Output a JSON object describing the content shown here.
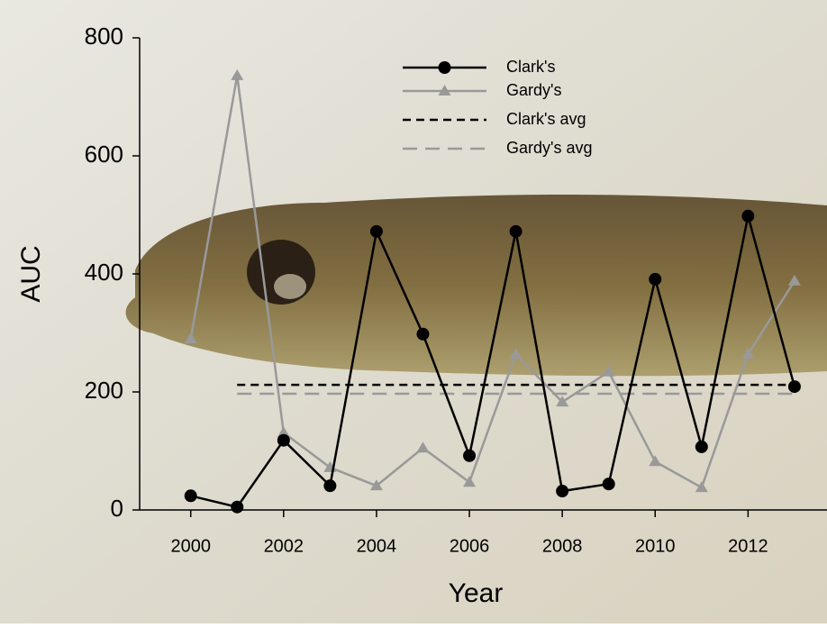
{
  "chart_data": {
    "type": "line",
    "x": [
      2000,
      2001,
      2002,
      2003,
      2004,
      2005,
      2006,
      2007,
      2008,
      2009,
      2010,
      2011,
      2012,
      2013
    ],
    "series": [
      {
        "name": "Clark's",
        "color": "#000000",
        "marker": "circle",
        "values": [
          24,
          5,
          118,
          41,
          472,
          298,
          92,
          472,
          32,
          44,
          391,
          107,
          498,
          209
        ]
      },
      {
        "name": "Gardy's",
        "color": "#999999",
        "marker": "triangle",
        "values": [
          290,
          736,
          131,
          72,
          41,
          105,
          47,
          264,
          183,
          234,
          82,
          38,
          264,
          388
        ]
      }
    ],
    "avg_lines": [
      {
        "name": "Clark's avg",
        "color": "#000000",
        "value": 212,
        "x": [
          2001,
          2013
        ]
      },
      {
        "name": "Gardy's avg",
        "color": "#999999",
        "value": 197,
        "x": [
          2001,
          2013
        ]
      }
    ],
    "xlabel": "Year",
    "ylabel": "AUC",
    "xlim": [
      1998.9,
      2013.7
    ],
    "xticks": [
      2000,
      2002,
      2004,
      2006,
      2008,
      2010,
      2012
    ],
    "ylim": [
      0,
      800
    ],
    "yticks": [
      0,
      200,
      400,
      600,
      800
    ],
    "legend": "top-center"
  }
}
